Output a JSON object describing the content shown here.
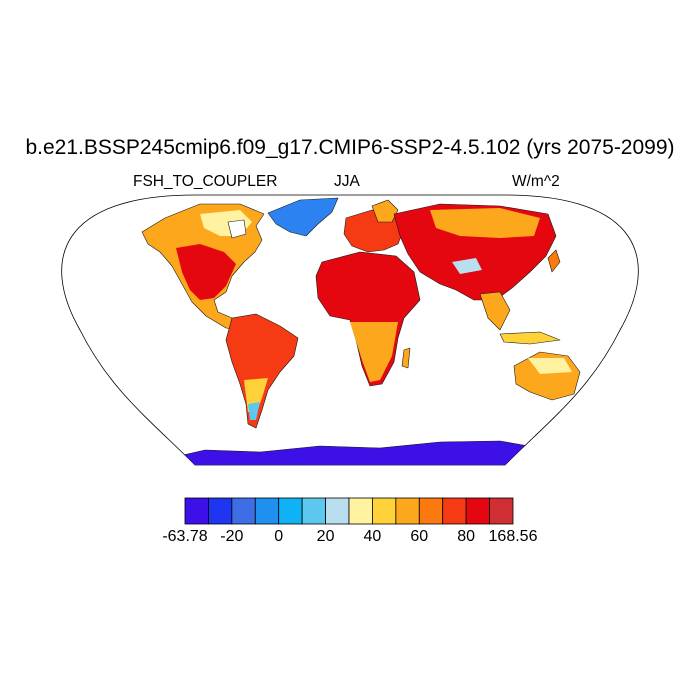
{
  "title": "b.e21.BSSP245cmip6.f09_g17.CMIP6-SSP2-4.5.102 (yrs 2075-2099)",
  "subtitle_left": "FSH_TO_COUPLER",
  "subtitle_center": "JJA",
  "subtitle_right": "W/m^2",
  "colorbar": {
    "colors": [
      "#3d10e8",
      "#1e36f2",
      "#3e6ee6",
      "#1f8ff0",
      "#0fb2f5",
      "#5dc8ef",
      "#b8def0",
      "#fff2a0",
      "#ffd23a",
      "#fda81c",
      "#fb7a10",
      "#f53a14",
      "#e4070f",
      "#cf2f32"
    ],
    "labels": [
      {
        "text": "-63.78",
        "boundary": 0
      },
      {
        "text": "-20",
        "boundary": 2
      },
      {
        "text": "0",
        "boundary": 4
      },
      {
        "text": "20",
        "boundary": 6
      },
      {
        "text": "40",
        "boundary": 8
      },
      {
        "text": "60",
        "boundary": 10
      },
      {
        "text": "80",
        "boundary": 12
      },
      {
        "text": "168.56",
        "boundary": 14
      }
    ]
  }
}
